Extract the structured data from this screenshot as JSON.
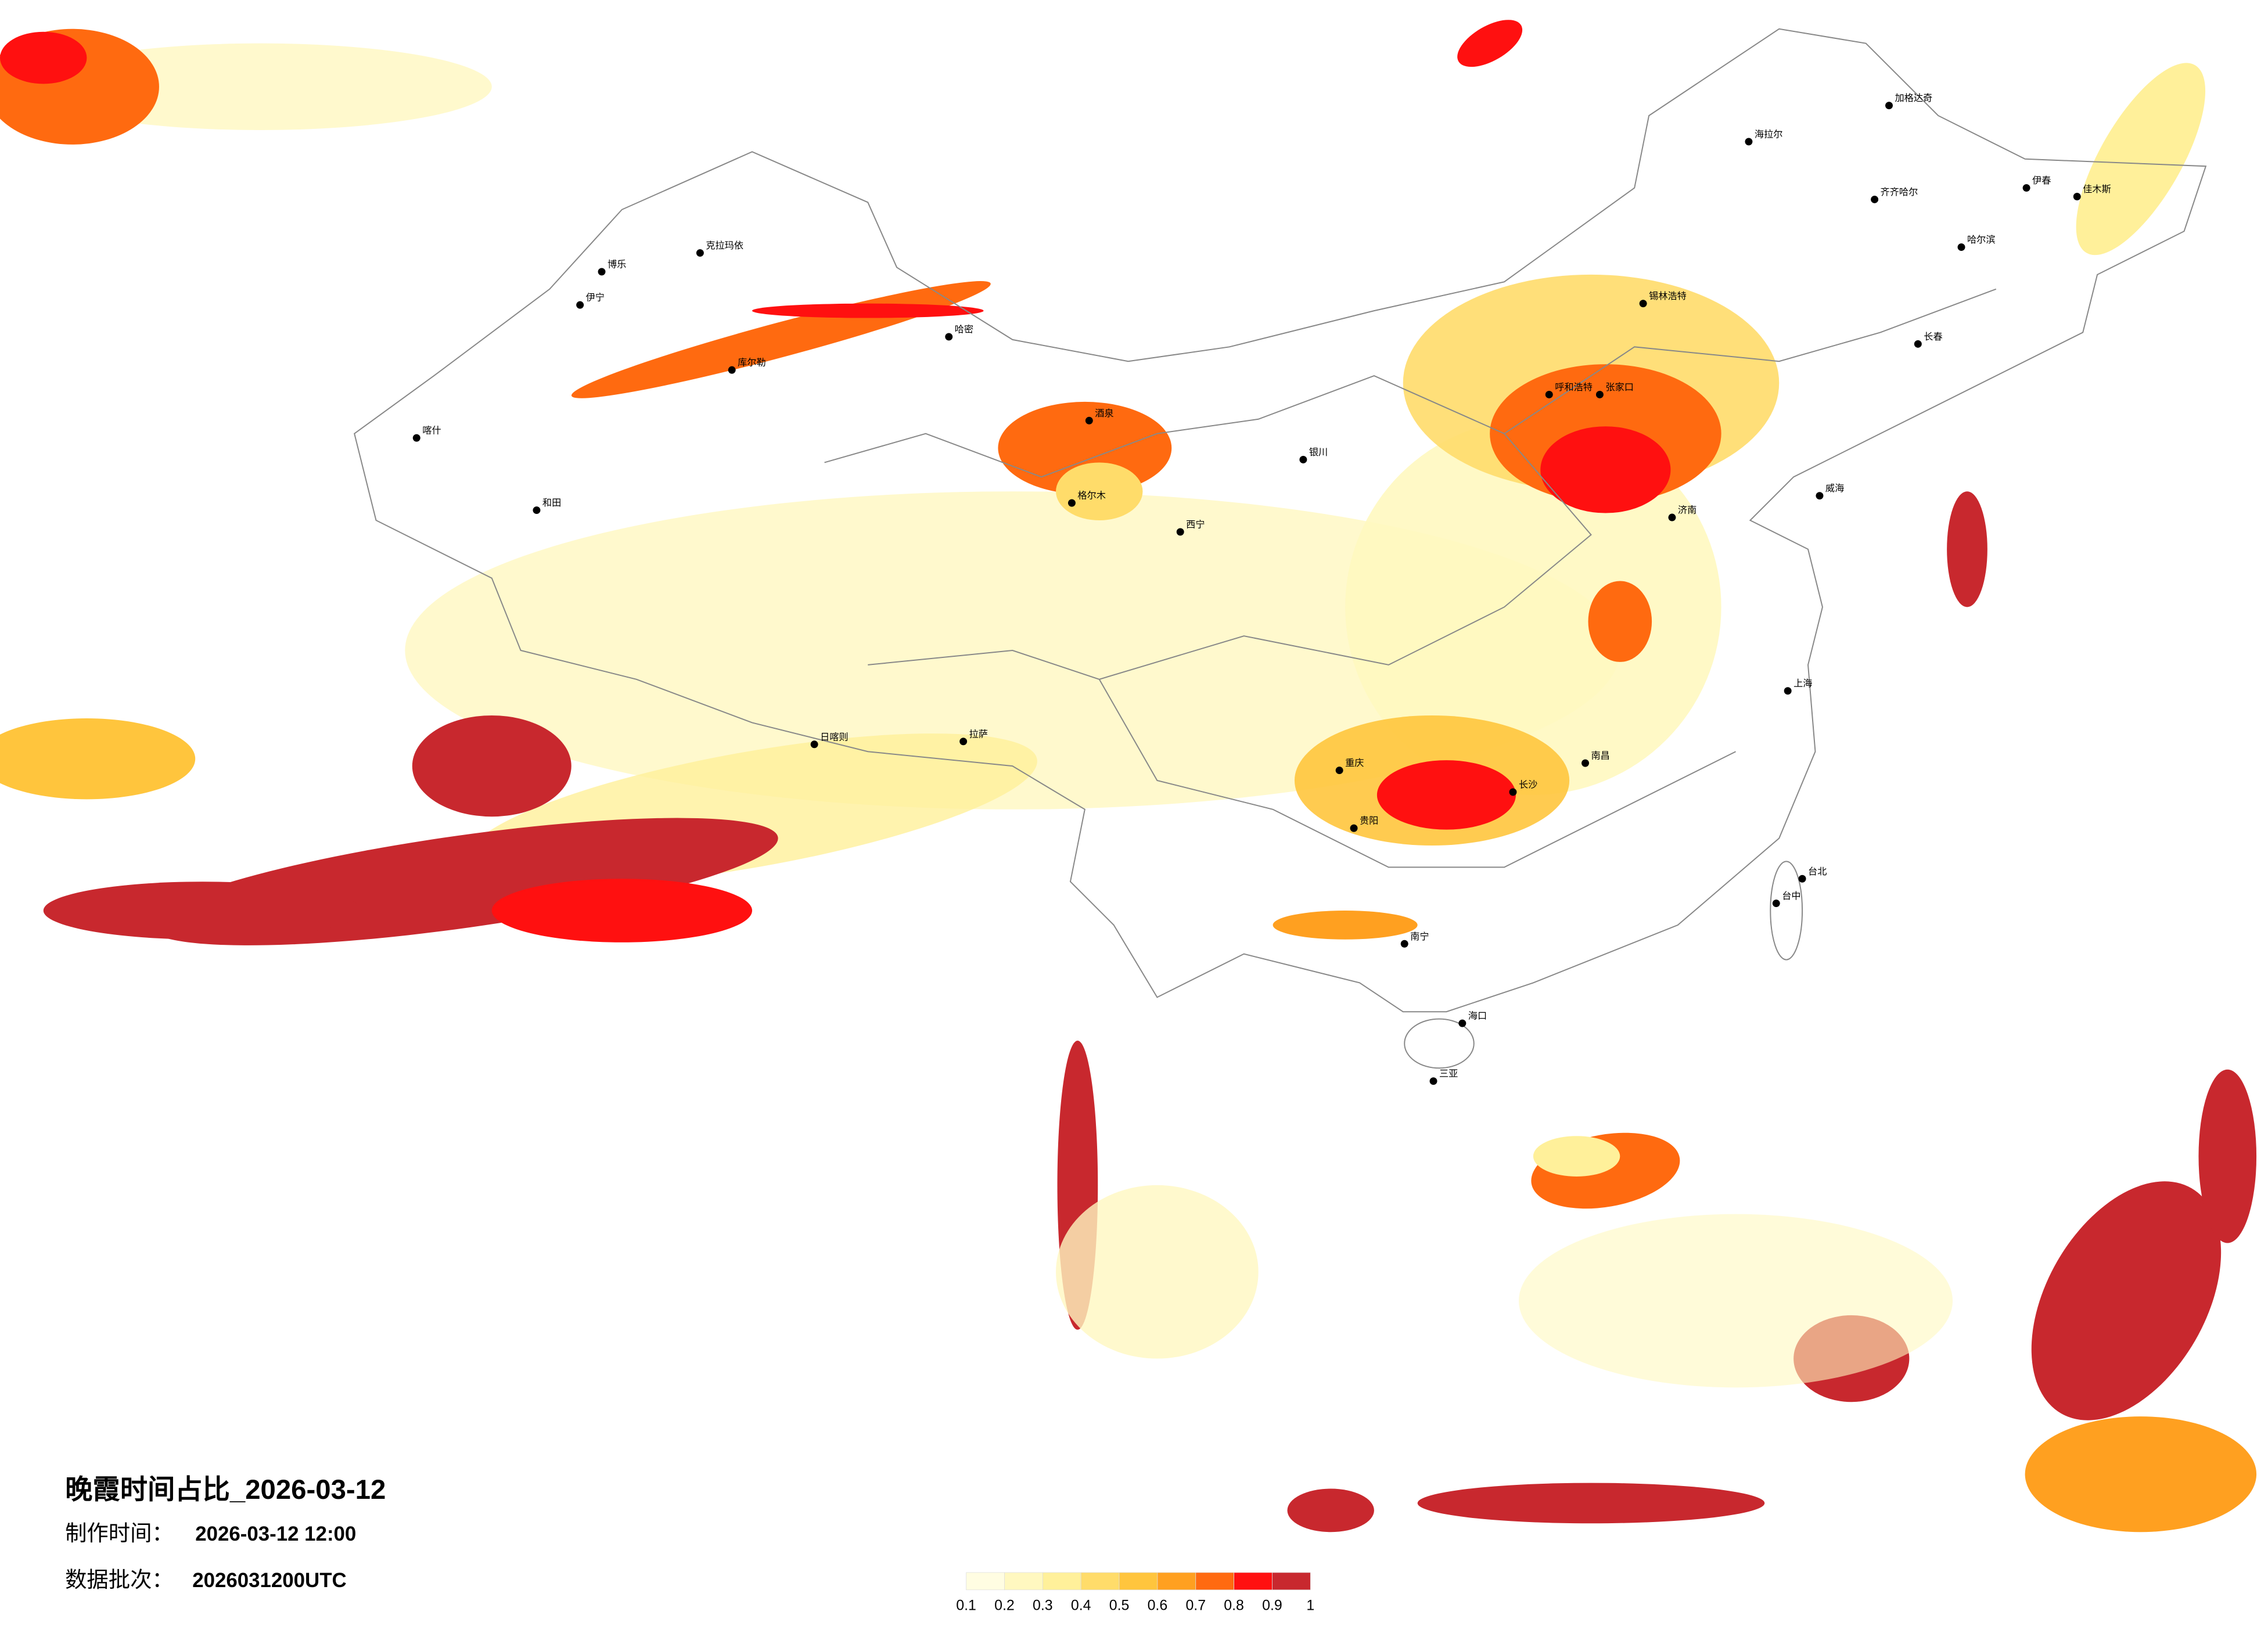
{
  "title": "晚霞时间占比_2026-03-12",
  "made": {
    "label": "制作时间：",
    "value": "2026-03-12 12:00"
  },
  "batch": {
    "label": "数据批次：",
    "value": "2026031200UTC"
  },
  "legend": {
    "ticks": [
      0.1,
      0.2,
      0.3,
      0.4,
      0.5,
      0.6,
      0.7,
      0.8,
      0.9,
      1
    ],
    "colors": [
      "#fffde2",
      "#fff8c0",
      "#fff09a",
      "#ffdc6a",
      "#ffc53d",
      "#ffa020",
      "#ff6a10",
      "#ff1010",
      "#c8282e"
    ]
  },
  "cities": [
    "加格达奇",
    "海拉尔",
    "齐齐哈尔",
    "哈尔滨",
    "伊春",
    "佳木斯",
    "长春",
    "锡林浩特",
    "呼和浩特",
    "张家口",
    "克拉玛依",
    "伊宁",
    "博乐",
    "库尔勒",
    "喀什",
    "和田",
    "哈密",
    "酒泉",
    "格尔木",
    "西宁",
    "银川",
    "拉萨",
    "日喀则",
    "重庆",
    "贵阳",
    "南宁",
    "海口",
    "三亚",
    "台北",
    "台中",
    "南昌",
    "济南",
    "威海",
    "上海",
    "长沙"
  ]
}
